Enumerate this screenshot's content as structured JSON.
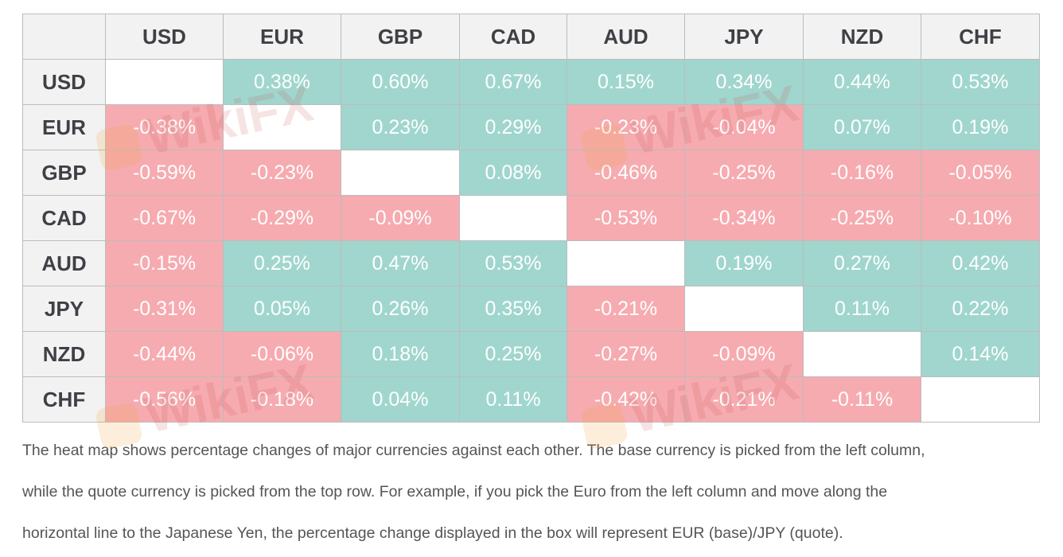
{
  "table": {
    "columns": [
      "USD",
      "EUR",
      "GBP",
      "CAD",
      "AUD",
      "JPY",
      "NZD",
      "CHF"
    ],
    "rows": [
      {
        "label": "USD",
        "cells": [
          "",
          "0.38%",
          "0.60%",
          "0.67%",
          "0.15%",
          "0.34%",
          "0.44%",
          "0.53%"
        ]
      },
      {
        "label": "EUR",
        "cells": [
          "-0.38%",
          "",
          "0.23%",
          "0.29%",
          "-0.23%",
          "-0.04%",
          "0.07%",
          "0.19%"
        ]
      },
      {
        "label": "GBP",
        "cells": [
          "-0.59%",
          "-0.23%",
          "",
          "0.08%",
          "-0.46%",
          "-0.25%",
          "-0.16%",
          "-0.05%"
        ]
      },
      {
        "label": "CAD",
        "cells": [
          "-0.67%",
          "-0.29%",
          "-0.09%",
          "",
          "-0.53%",
          "-0.34%",
          "-0.25%",
          "-0.10%"
        ]
      },
      {
        "label": "AUD",
        "cells": [
          "-0.15%",
          "0.25%",
          "0.47%",
          "0.53%",
          "",
          "0.19%",
          "0.27%",
          "0.42%"
        ]
      },
      {
        "label": "JPY",
        "cells": [
          "-0.31%",
          "0.05%",
          "0.26%",
          "0.35%",
          "-0.21%",
          "",
          "0.11%",
          "0.22%"
        ]
      },
      {
        "label": "NZD",
        "cells": [
          "-0.44%",
          "-0.06%",
          "0.18%",
          "0.25%",
          "-0.27%",
          "-0.09%",
          "",
          "0.14%"
        ]
      },
      {
        "label": "CHF",
        "cells": [
          "-0.56%",
          "-0.18%",
          "0.04%",
          "0.11%",
          "-0.42%",
          "-0.21%",
          "-0.11%",
          ""
        ]
      }
    ]
  },
  "colors": {
    "positive": "#a0d6ce",
    "negative": "#f6abb0",
    "header": "#f2f2f2"
  },
  "description": [
    "The heat map shows percentage changes of major currencies against each other. The base currency is picked from the left column,",
    "while the quote currency is picked from the top row. For example, if you pick the Euro from the left column and move along the",
    "horizontal line to the Japanese Yen, the percentage change displayed in the box will represent EUR (base)/JPY (quote)."
  ],
  "watermark": "WikiFX"
}
